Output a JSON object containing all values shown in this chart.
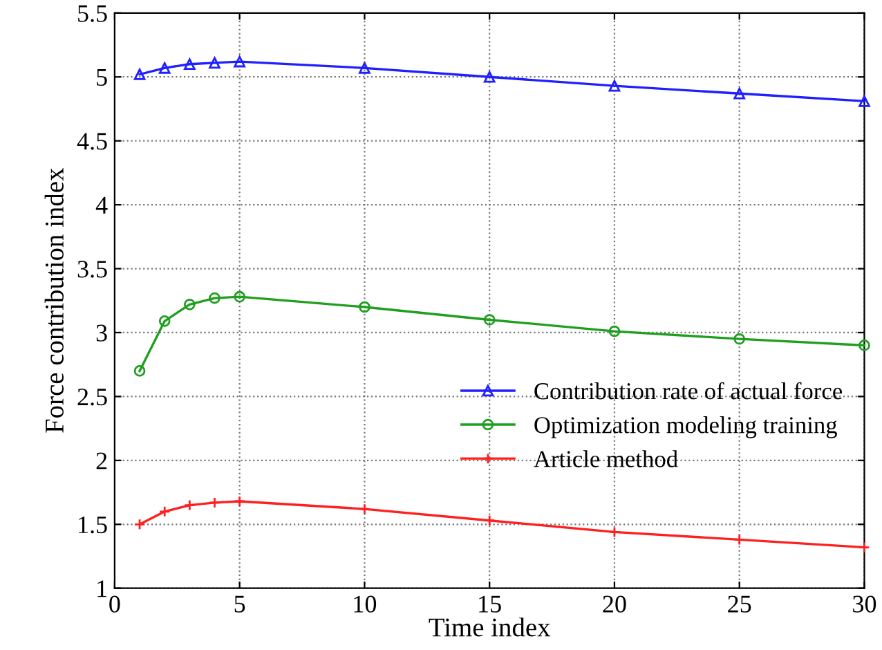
{
  "chart_data": {
    "type": "line",
    "xlabel": "Time index",
    "ylabel": "Force contribution index",
    "x": [
      1,
      2,
      3,
      4,
      5,
      10,
      15,
      20,
      25,
      30
    ],
    "series": [
      {
        "name": "Contribution rate of actual force",
        "color": "#1f1fff",
        "marker": "triangle",
        "values": [
          5.02,
          5.07,
          5.1,
          5.11,
          5.12,
          5.07,
          5.0,
          4.93,
          4.87,
          4.81
        ]
      },
      {
        "name": "Optimization modeling training",
        "color": "#1f9f1f",
        "marker": "circle",
        "values": [
          2.7,
          3.09,
          3.22,
          3.27,
          3.28,
          3.2,
          3.1,
          3.01,
          2.95,
          2.9
        ]
      },
      {
        "name": "Article method",
        "color": "#ff1f1f",
        "marker": "cross",
        "values": [
          1.5,
          1.6,
          1.65,
          1.67,
          1.68,
          1.62,
          1.53,
          1.44,
          1.38,
          1.32
        ]
      }
    ],
    "xlim": [
      0,
      30
    ],
    "xticks": [
      0,
      5,
      10,
      15,
      20,
      25,
      30
    ],
    "ylim": [
      1,
      5.5
    ],
    "yticks": [
      1,
      1.5,
      2,
      2.5,
      3,
      3.5,
      4,
      4.5,
      5,
      5.5
    ],
    "grid": true,
    "legend": "right",
    "line_style": "solid"
  }
}
